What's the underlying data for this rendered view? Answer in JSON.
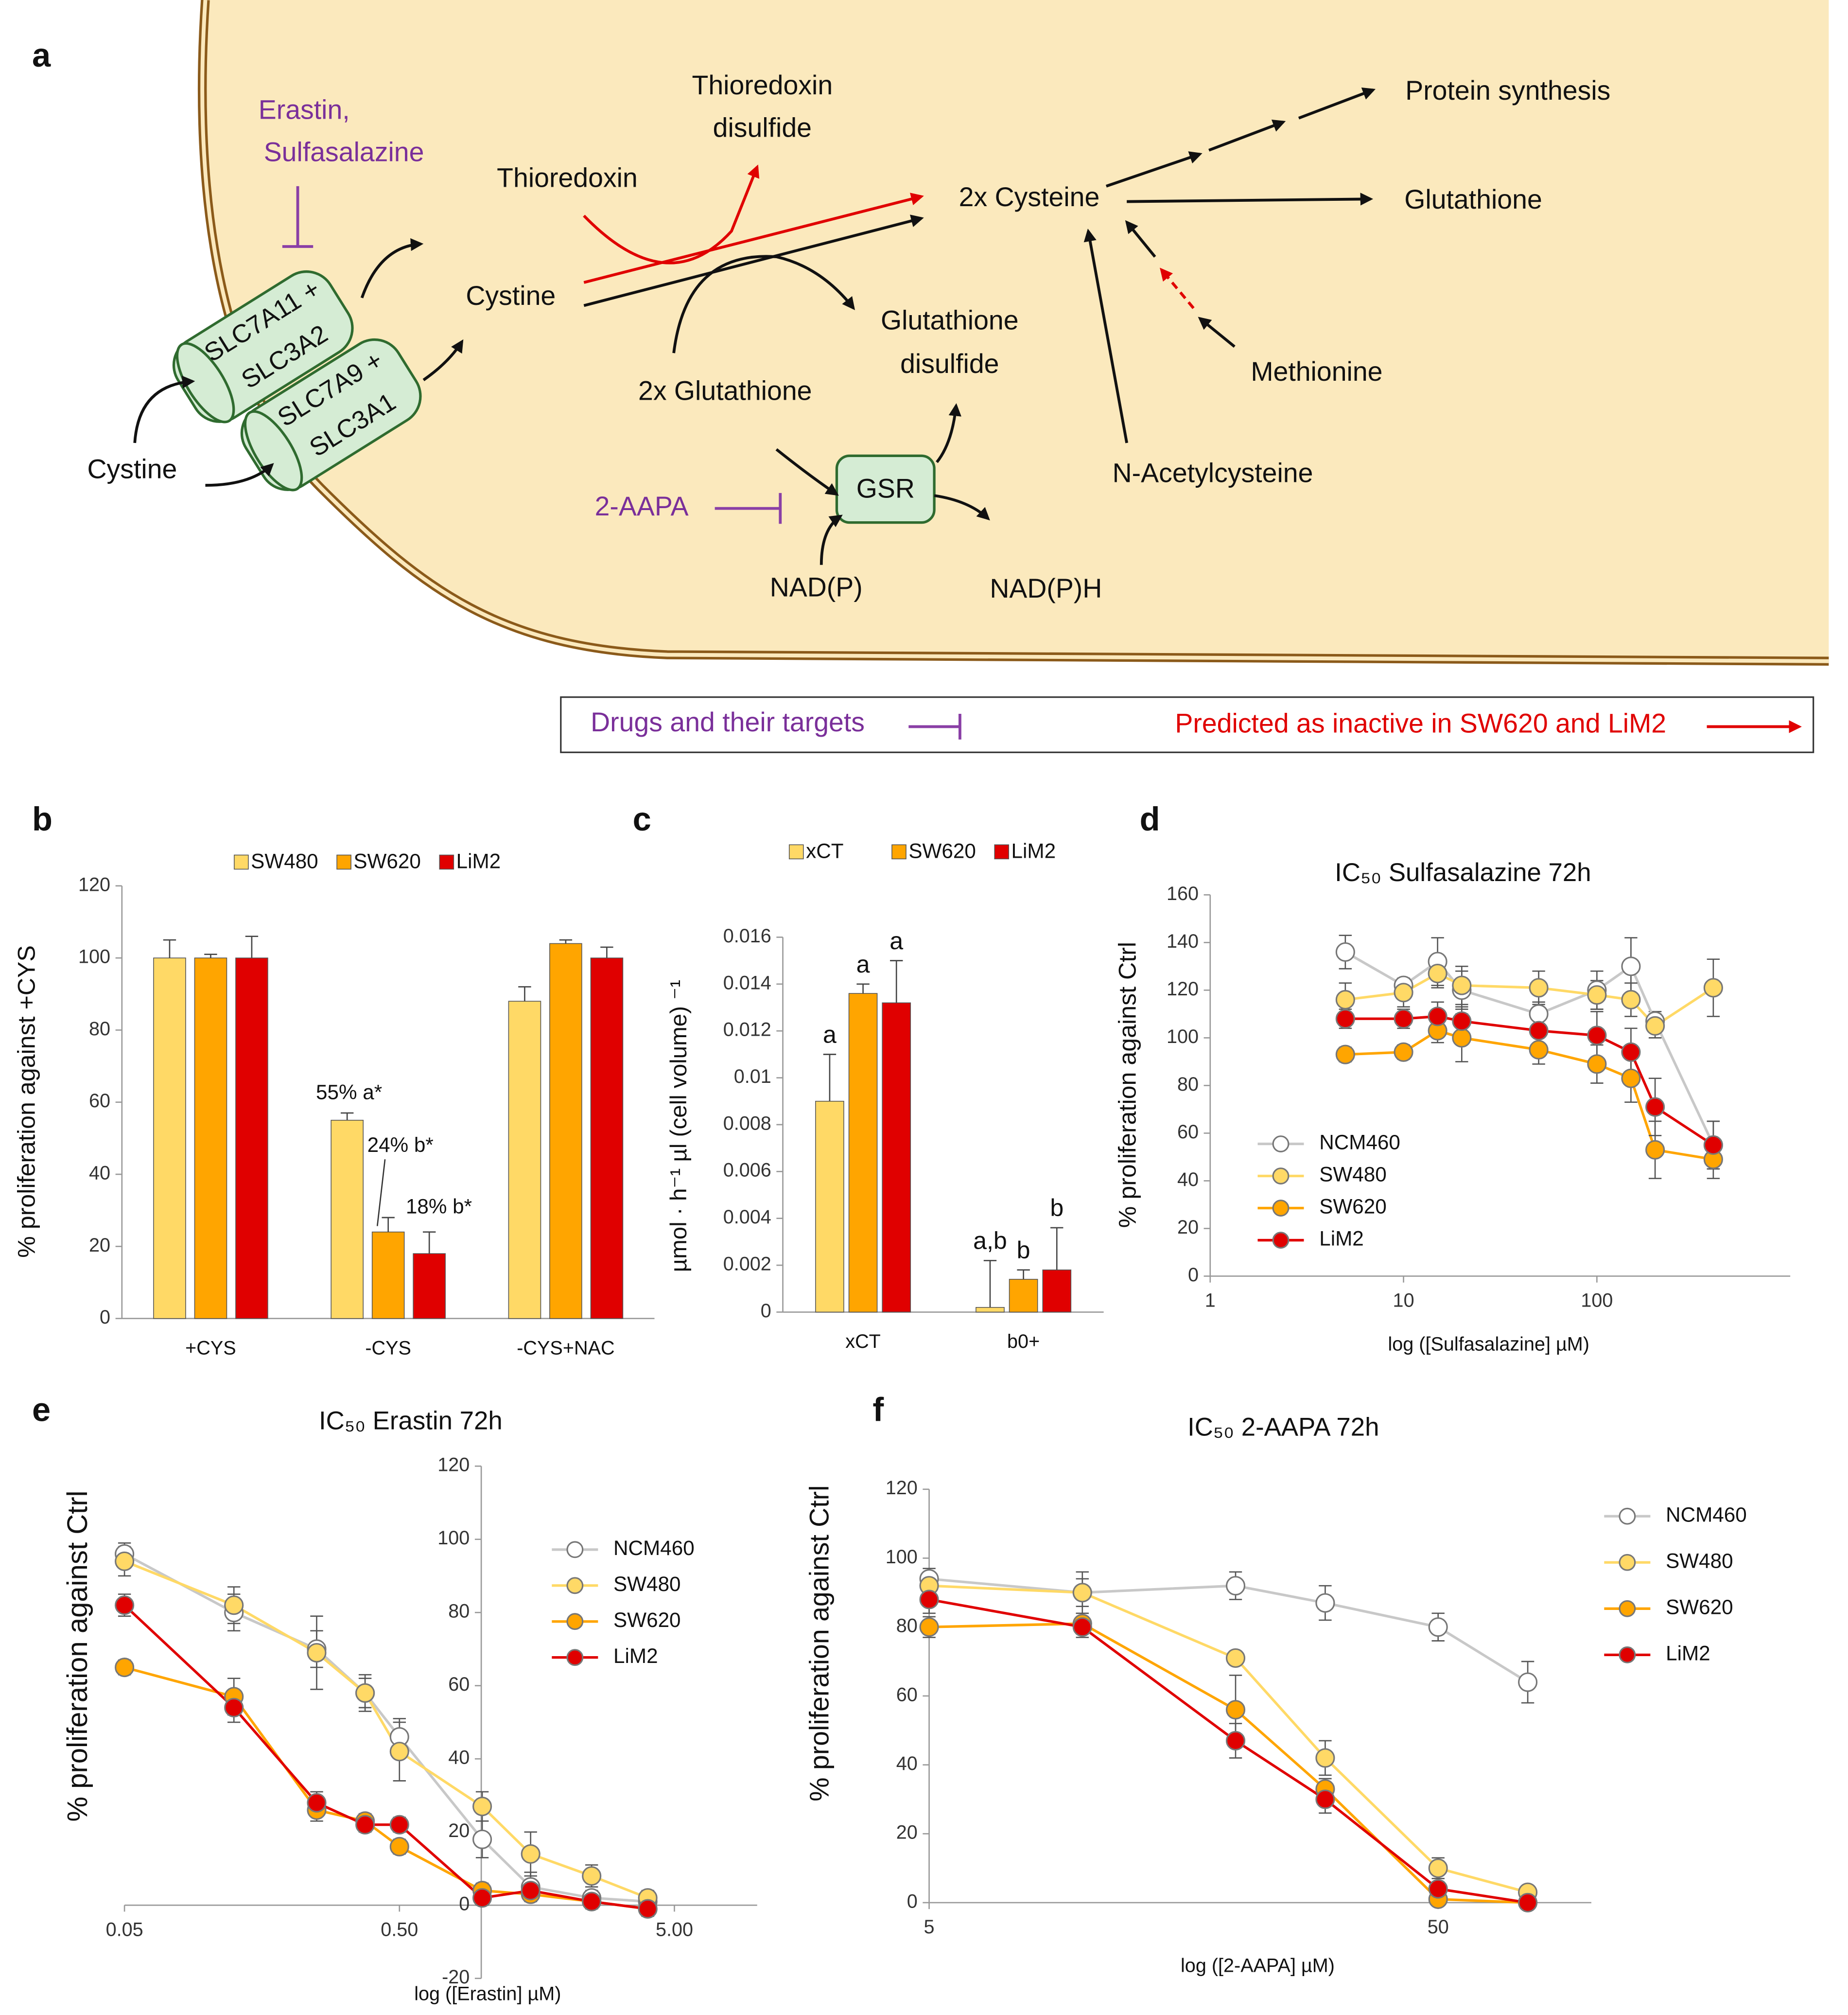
{
  "diagram": {
    "panel": "a",
    "drugs": [
      "Erastin,",
      "Sulfasalazine",
      "2-AAPA"
    ],
    "transporters": [
      [
        "SLC7A11 +",
        "SLC3A2"
      ],
      [
        "SLC7A9 +",
        "SLC3A1"
      ]
    ],
    "nodes": [
      "Cystine",
      "Cystine",
      "Thioredoxin",
      "Thioredoxin",
      "disulfide",
      "2x Cysteine",
      "Protein synthesis",
      "Glutathione",
      "2x Glutathione",
      "Glutathione",
      "disulfide",
      "Methionine",
      "N-Acetylcysteine",
      "NAD(P)",
      "NAD(P)H"
    ],
    "enzyme": "GSR",
    "legend": {
      "drugs": "Drugs and their targets",
      "inactive": "Predicted as inactive in SW620 and LiM2"
    }
  },
  "chart_data": [
    {
      "type": "bar",
      "panel": "b",
      "categories": [
        "+CYS",
        "-CYS",
        "-CYS+NAC"
      ],
      "series": [
        {
          "name": "SW480",
          "color": "#ffd966",
          "values": [
            100,
            55,
            88
          ],
          "errors": [
            5,
            2,
            4
          ]
        },
        {
          "name": "SW620",
          "color": "#ffa500",
          "values": [
            100,
            24,
            104
          ],
          "errors": [
            1,
            4,
            1
          ]
        },
        {
          "name": "LiM2",
          "color": "#e00000",
          "values": [
            100,
            18,
            100
          ],
          "errors": [
            6,
            6,
            3
          ]
        }
      ],
      "ylabel": "% proliferation against +CYS",
      "ylim": [
        0,
        120
      ],
      "yticks": [
        0,
        20,
        40,
        60,
        80,
        100,
        120
      ],
      "legend": "upper center",
      "annotations": [
        "55% a*",
        "24% b*",
        "18% b*"
      ]
    },
    {
      "type": "bar",
      "panel": "c",
      "categories": [
        "xCT",
        "b0+"
      ],
      "series": [
        {
          "name": "xCT",
          "color": "#ffd966",
          "values": [
            0.009,
            0.0002
          ],
          "errors": [
            0.002,
            0.002
          ],
          "labels": [
            "a",
            "a,b"
          ]
        },
        {
          "name": "SW620",
          "color": "#ffa500",
          "values": [
            0.0136,
            0.0014
          ],
          "errors": [
            0.0004,
            0.0004
          ],
          "labels": [
            "a",
            "b"
          ]
        },
        {
          "name": "LiM2",
          "color": "#e00000",
          "values": [
            0.0132,
            0.0018
          ],
          "errors": [
            0.0018,
            0.0018
          ],
          "labels": [
            "a",
            "b"
          ]
        }
      ],
      "ylabel": "µmol · h⁻¹ µl (cell volume) ⁻¹",
      "ylim": [
        0,
        0.016
      ],
      "yticks": [
        0,
        0.002,
        0.004,
        0.006,
        0.008,
        0.01,
        0.012,
        0.014,
        0.016
      ],
      "legend": "upper center"
    },
    {
      "type": "line",
      "panel": "d",
      "title": "IC₅₀ Sulfasalazine 72h",
      "xlabel": "log ([Sulfasalazine] µM)",
      "ylabel": "% proliferation against Ctrl",
      "x": [
        5,
        10,
        15,
        20,
        50,
        100,
        150,
        200,
        400
      ],
      "xscale": "log",
      "xlim": [
        1,
        1000
      ],
      "xticks": [
        1,
        10,
        100
      ],
      "ylim": [
        0,
        160
      ],
      "yticks": [
        0,
        20,
        40,
        60,
        80,
        100,
        120,
        140,
        160
      ],
      "legend": "lower left",
      "series": [
        {
          "name": "NCM460",
          "color": "#ffffff",
          "line_color": "#c8c8c8",
          "values": [
            136,
            122,
            132,
            120,
            110,
            120,
            130,
            107,
            55
          ],
          "errors": [
            7,
            3,
            10,
            8,
            5,
            8,
            12,
            4,
            10
          ]
        },
        {
          "name": "SW480",
          "color": "#ffd966",
          "line_color": "#ffd966",
          "values": [
            116,
            119,
            127,
            122,
            121,
            118,
            116,
            105,
            121
          ],
          "errors": [
            7,
            6,
            6,
            8,
            7,
            6,
            7,
            5,
            12
          ]
        },
        {
          "name": "SW620",
          "color": "#ffa500",
          "line_color": "#ffa500",
          "values": [
            93,
            94,
            103,
            100,
            95,
            89,
            83,
            53,
            49
          ],
          "errors": [
            3,
            3,
            5,
            10,
            6,
            8,
            10,
            12,
            8
          ]
        },
        {
          "name": "LiM2",
          "color": "#e00000",
          "line_color": "#e00000",
          "values": [
            108,
            108,
            109,
            107,
            103,
            101,
            94,
            71,
            55
          ],
          "errors": [
            4,
            4,
            6,
            6,
            6,
            10,
            10,
            12,
            10
          ]
        }
      ]
    },
    {
      "type": "line",
      "panel": "e",
      "title": "IC₅₀ Erastin 72h",
      "xlabel": "log ([Erastin] µM)",
      "ylabel": "% proliferation against Ctrl",
      "x": [
        0.05,
        0.125,
        0.25,
        0.375,
        0.5,
        1,
        1.5,
        2.5,
        4
      ],
      "xscale": "log",
      "xlim": [
        0.05,
        10
      ],
      "xticks": [
        0.05,
        {
          "value": 0.5,
          "label": "0.50"
        },
        {
          "value": 5,
          "label": "5.00"
        }
      ],
      "ylim": [
        -20,
        120
      ],
      "yticks": [
        -20,
        0,
        20,
        40,
        60,
        80,
        100,
        120
      ],
      "legend": "upper right",
      "series": [
        {
          "name": "NCM460",
          "color": "#ffffff",
          "line_color": "#c8c8c8",
          "values": [
            96,
            80,
            70,
            58,
            46,
            18,
            5,
            2,
            1
          ],
          "errors": [
            3,
            5,
            5,
            4,
            5,
            5,
            4,
            2,
            2
          ]
        },
        {
          "name": "SW480",
          "color": "#ffd966",
          "line_color": "#ffd966",
          "values": [
            94,
            82,
            69,
            58,
            42,
            27,
            14,
            8,
            2
          ],
          "errors": [
            4,
            5,
            10,
            5,
            8,
            4,
            6,
            3,
            2
          ]
        },
        {
          "name": "SW620",
          "color": "#ffa500",
          "line_color": "#ffa500",
          "values": [
            65,
            57,
            26,
            23,
            16,
            4,
            3,
            1,
            -1
          ],
          "errors": [
            2,
            5,
            3,
            2,
            2,
            2,
            2,
            2,
            2
          ]
        },
        {
          "name": "LiM2",
          "color": "#e00000",
          "line_color": "#e00000",
          "values": [
            82,
            54,
            28,
            22,
            22,
            2,
            4,
            1,
            -1
          ],
          "errors": [
            3,
            4,
            3,
            2,
            2,
            2,
            2,
            2,
            2
          ]
        }
      ]
    },
    {
      "type": "line",
      "panel": "f",
      "title": "IC₅₀ 2-AAPA 72h",
      "xlabel": "log ([2-AAPA] µM)",
      "ylabel": "% proliferation against Ctrl",
      "x": [
        5,
        10,
        20,
        30,
        50,
        75
      ],
      "xscale": "log",
      "xlim": [
        5,
        100
      ],
      "xticks": [
        5,
        50
      ],
      "ylim": [
        0,
        120
      ],
      "yticks": [
        0,
        20,
        40,
        60,
        80,
        100,
        120
      ],
      "legend": "right",
      "series": [
        {
          "name": "NCM460",
          "color": "#ffffff",
          "line_color": "#c8c8c8",
          "values": [
            94,
            90,
            92,
            87,
            80,
            64
          ],
          "errors": [
            3,
            6,
            4,
            5,
            4,
            6
          ]
        },
        {
          "name": "SW480",
          "color": "#ffd966",
          "line_color": "#ffd966",
          "values": [
            92,
            90,
            71,
            42,
            10,
            3
          ],
          "errors": [
            3,
            4,
            2,
            5,
            3,
            1
          ]
        },
        {
          "name": "SW620",
          "color": "#ffa500",
          "line_color": "#ffa500",
          "values": [
            80,
            81,
            56,
            33,
            1,
            0
          ],
          "errors": [
            3,
            3,
            10,
            3,
            1,
            1
          ]
        },
        {
          "name": "LiM2",
          "color": "#e00000",
          "line_color": "#e00000",
          "values": [
            88,
            80,
            47,
            30,
            4,
            0
          ],
          "errors": [
            4,
            3,
            5,
            4,
            2,
            1
          ]
        }
      ]
    }
  ]
}
